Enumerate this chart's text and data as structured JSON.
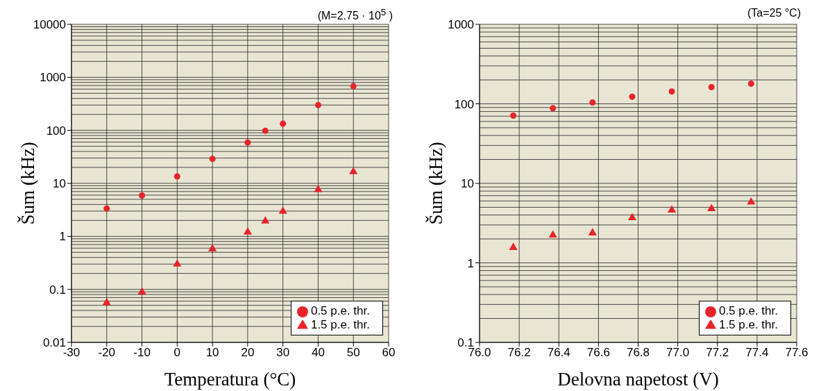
{
  "chart_data": [
    {
      "type": "scatter",
      "xlabel": "Temperatura (°C)",
      "ylabel": "Šum (kHz)",
      "annotations": [
        "(M=2.75 · 10$^{5}$ )"
      ],
      "x": [
        -20,
        -10,
        0,
        10,
        20,
        25,
        30,
        40,
        50
      ],
      "series": [
        {
          "name": "0.5 p.e. thr.",
          "color": "#e8242a",
          "marker": "circle",
          "values": [
            3.35,
            5.9,
            13.5,
            29,
            59,
            98,
            134,
            300,
            680
          ]
        },
        {
          "name": "1.5 p.e. thr.",
          "color": "#e8242a",
          "marker": "triangle",
          "values": [
            0.056,
            0.089,
            0.3,
            0.58,
            1.2,
            1.94,
            2.96,
            7.6,
            16.6
          ]
        }
      ],
      "xlim": [
        -30,
        60
      ],
      "xticks": [
        -30,
        -20,
        -10,
        0,
        10,
        20,
        30,
        40,
        50,
        60
      ],
      "ylim": [
        0.01,
        10000
      ],
      "yticks": [
        0.01,
        0.1,
        1,
        10,
        100,
        1000,
        10000
      ],
      "log": "y",
      "grid": true,
      "legend": "bottom right"
    },
    {
      "type": "scatter",
      "xlabel": "Delovna napetost (V)",
      "ylabel": "Šum (kHz)",
      "annotations": [
        "(Ta=25 °C)"
      ],
      "x": [
        76.17,
        76.37,
        76.57,
        76.77,
        76.97,
        77.17,
        77.37
      ],
      "series": [
        {
          "name": "0.5 p.e. thr.",
          "color": "#e8242a",
          "marker": "circle",
          "values": [
            71,
            88,
            104,
            123,
            143,
            162,
            179
          ]
        },
        {
          "name": "1.5 p.e. thr.",
          "color": "#e8242a",
          "marker": "triangle",
          "values": [
            1.56,
            2.24,
            2.38,
            3.7,
            4.6,
            4.8,
            5.8
          ]
        }
      ],
      "xlim": [
        76.0,
        77.6
      ],
      "xticks": [
        {
          "value": 76.0,
          "label": "76.0"
        },
        {
          "value": 76.2,
          "label": "76.2"
        },
        {
          "value": 76.4,
          "label": "76.4"
        },
        {
          "value": 76.6,
          "label": "76.6"
        },
        {
          "value": 76.8,
          "label": "76.8"
        },
        {
          "value": 77.0,
          "label": "77.0"
        },
        {
          "value": 77.2,
          "label": "77.2"
        },
        {
          "value": 77.4,
          "label": "77.4"
        },
        {
          "value": 77.6,
          "label": "77.6"
        }
      ],
      "ylim": [
        0.1,
        1000
      ],
      "yticks": [
        0.1,
        1,
        10,
        100,
        1000
      ],
      "log": "y",
      "grid": true,
      "legend": "bottom right"
    }
  ]
}
